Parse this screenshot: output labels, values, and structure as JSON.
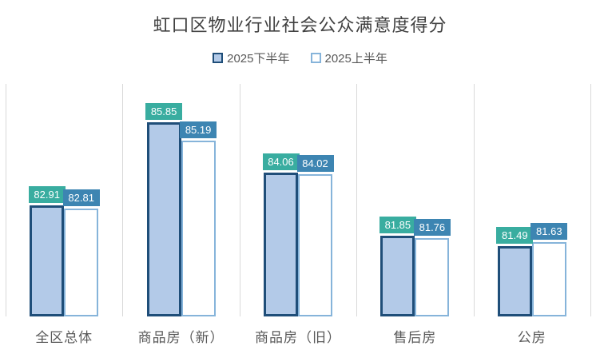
{
  "title": "虹口区物业行业社会公众满意度得分",
  "legend": {
    "series1_label": "2025下半年",
    "series2_label": "2025上半年"
  },
  "colors": {
    "title_text": "#404040",
    "axis_text": "#595959",
    "separator_line": "#d9d9d9",
    "series1_fill": "#b3cae8",
    "series1_border": "#1f4e79",
    "series2_fill": "#ffffff",
    "series2_border": "#86b4da",
    "series1_label_bg": "#39ada0",
    "series2_label_bg": "#3d85b2",
    "value_label_text": "#ffffff"
  },
  "chart_data": {
    "type": "bar",
    "title": "虹口区物业行业社会公众满意度得分",
    "categories": [
      "全区总体",
      "商品房（新）",
      "商品房（旧）",
      "售后房",
      "公房"
    ],
    "series": [
      {
        "name": "2025下半年",
        "values": [
          82.91,
          85.85,
          84.06,
          81.85,
          81.49
        ]
      },
      {
        "name": "2025上半年",
        "values": [
          82.81,
          85.19,
          84.02,
          81.76,
          81.63
        ]
      }
    ],
    "ylim": [
      79,
      87.2
    ],
    "xlabel": "",
    "ylabel": "",
    "y_axis_visible": false,
    "grid": "vertical-category-separators-only",
    "legend_position": "top-center",
    "data_labels": true,
    "data_label_format": "0.00"
  }
}
